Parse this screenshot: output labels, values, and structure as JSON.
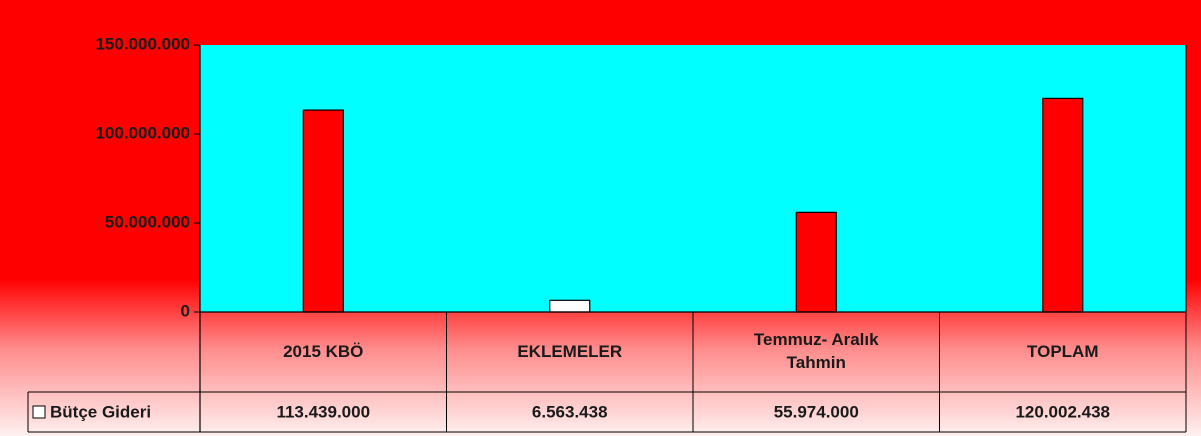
{
  "chart_data": {
    "type": "bar",
    "categories": [
      "2015 KBÖ",
      "EKLEMELER",
      "Temmuz- Aralık Tahmin",
      "TOPLAM"
    ],
    "series": [
      {
        "name": "Bütçe Gideri",
        "colors": [
          "#ff0000",
          "#ffffff",
          "#ff0000",
          "#ff0000"
        ],
        "values": [
          113439000,
          6563438,
          55974000,
          120002438
        ],
        "value_labels": [
          "113.439.000",
          "6.563.438",
          "55.974.000",
          "120.002.438"
        ]
      }
    ],
    "ylim": [
      0,
      150000000
    ],
    "yticks": [
      0,
      {
        "value": 50000000,
        "label": "50.000.000"
      },
      {
        "value": 100000000,
        "label": "100.000.000"
      },
      {
        "value": 150000000,
        "label": "150.000.000"
      }
    ],
    "plot_color": "#00ffff",
    "background_color": "#ff0000"
  }
}
